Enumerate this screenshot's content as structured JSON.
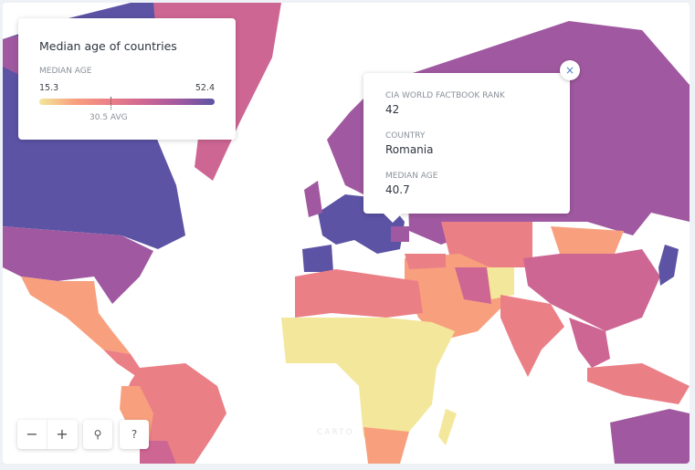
{
  "legend": {
    "title": "Median age of countries",
    "subtitle": "MEDIAN AGE",
    "min": "15.3",
    "max": "52.4",
    "avg": "30.5 AVG",
    "colors": [
      "#f3e79b",
      "#f8a07e",
      "#eb7f86",
      "#ce6693",
      "#a059a0",
      "#5c53a5"
    ]
  },
  "popup": {
    "rank_label": "CIA WORLD FACTBOOK RANK",
    "rank": "42",
    "country_label": "COUNTRY",
    "country": "Romania",
    "age_label": "MEDIAN AGE",
    "age": "40.7",
    "close_icon": "×"
  },
  "controls": {
    "zoom_out": "−",
    "zoom_in": "+",
    "search_icon": "⚲",
    "help": "?"
  },
  "attribution": "CARTO"
}
